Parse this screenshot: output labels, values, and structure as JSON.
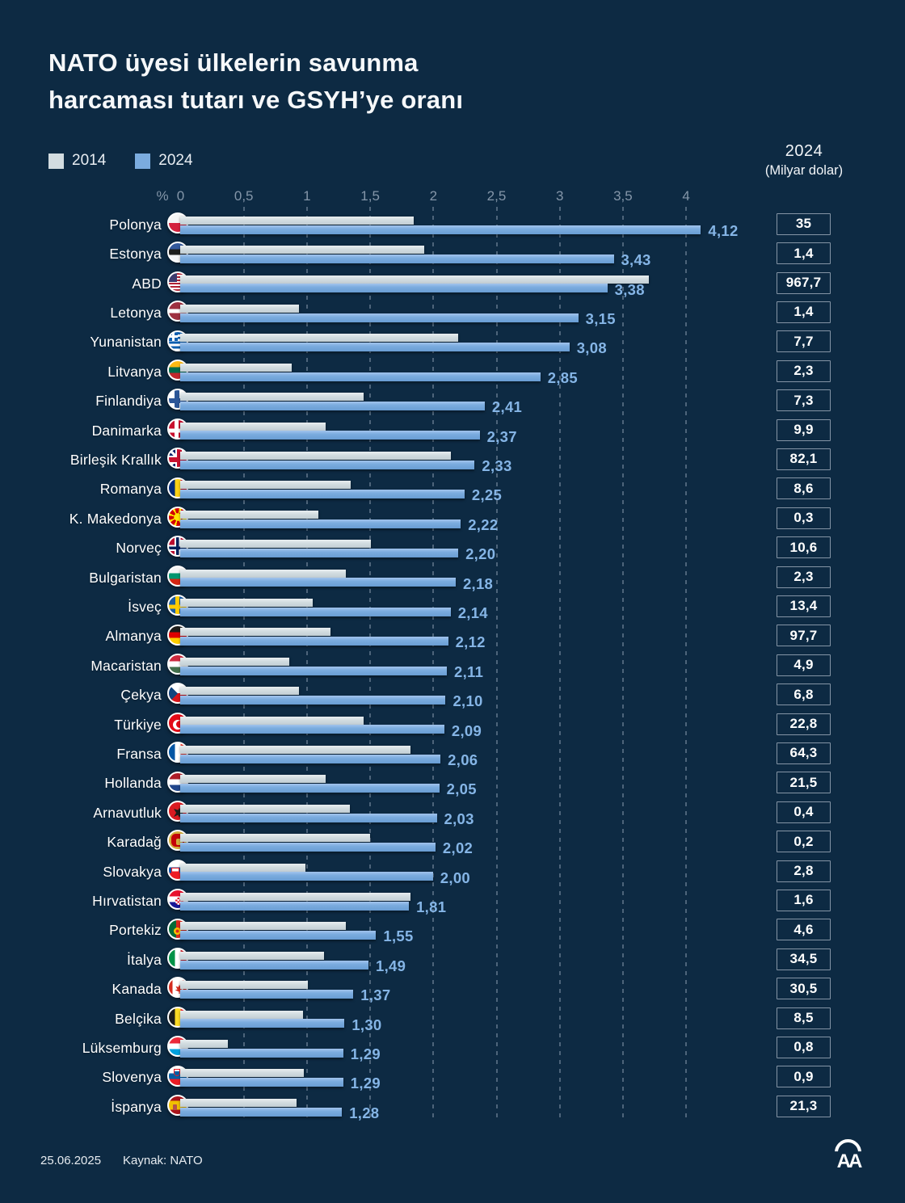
{
  "title": {
    "line1": "NATO üyesi ülkelerin savunma",
    "line2": "harcaması tutarı ve GSYH’ye oranı"
  },
  "legend": {
    "items": [
      {
        "label": "2014",
        "color": "#d2dce0"
      },
      {
        "label": "2024",
        "color": "#7bacdf"
      }
    ]
  },
  "right_header": {
    "line1": "2024",
    "line2": "(Milyar dolar)"
  },
  "axis": {
    "percent_symbol": "%",
    "tick_labels": [
      "0",
      "0,5",
      "1",
      "1,5",
      "2",
      "2,5",
      "3",
      "3,5",
      "4"
    ]
  },
  "footer": {
    "date": "25.06.2025",
    "source": "Kaynak: NATO"
  },
  "logo_text": "AA",
  "colors": {
    "background": "#0d2a43",
    "bar_2014": "#d2dce0",
    "bar_2024": "#7bacdf",
    "value_label": "#85b5e6",
    "axis_label": "#8496a9",
    "box_border": "#8595a6"
  },
  "chart_data": {
    "type": "bar",
    "orientation": "horizontal",
    "title": "NATO üyesi ülkelerin savunma harcaması tutarı ve GSYH’ye oranı",
    "series_names": [
      "2014",
      "2024"
    ],
    "value_unit": "savunma harcamasının GSYH’ye oranı (%)",
    "secondary_value_unit": "2024 savunma harcaması (Milyar dolar)",
    "x_axis": {
      "min": 0,
      "max": 4,
      "tick_step": 0.5
    },
    "grid": "dashed-vertical",
    "legend_position": "top-left",
    "rows": [
      {
        "country": "Polonya",
        "flag": "pl",
        "pct_2014": 1.85,
        "pct_2024": 4.12,
        "pct_2024_label": "4,12",
        "usd_2024_billion": "35"
      },
      {
        "country": "Estonya",
        "flag": "ee",
        "pct_2014": 1.93,
        "pct_2024": 3.43,
        "pct_2024_label": "3,43",
        "usd_2024_billion": "1,4"
      },
      {
        "country": "ABD",
        "flag": "us",
        "pct_2014": 3.71,
        "pct_2024": 3.38,
        "pct_2024_label": "3,38",
        "usd_2024_billion": "967,7"
      },
      {
        "country": "Letonya",
        "flag": "lv",
        "pct_2014": 0.94,
        "pct_2024": 3.15,
        "pct_2024_label": "3,15",
        "usd_2024_billion": "1,4"
      },
      {
        "country": "Yunanistan",
        "flag": "gr",
        "pct_2014": 2.2,
        "pct_2024": 3.08,
        "pct_2024_label": "3,08",
        "usd_2024_billion": "7,7"
      },
      {
        "country": "Litvanya",
        "flag": "lt",
        "pct_2014": 0.88,
        "pct_2024": 2.85,
        "pct_2024_label": "2,85",
        "usd_2024_billion": "2,3"
      },
      {
        "country": "Finlandiya",
        "flag": "fi",
        "pct_2014": 1.45,
        "pct_2024": 2.41,
        "pct_2024_label": "2,41",
        "usd_2024_billion": "7,3"
      },
      {
        "country": "Danimarka",
        "flag": "dk",
        "pct_2014": 1.15,
        "pct_2024": 2.37,
        "pct_2024_label": "2,37",
        "usd_2024_billion": "9,9"
      },
      {
        "country": "Birleşik Krallık",
        "flag": "gb",
        "pct_2014": 2.14,
        "pct_2024": 2.33,
        "pct_2024_label": "2,33",
        "usd_2024_billion": "82,1"
      },
      {
        "country": "Romanya",
        "flag": "ro",
        "pct_2014": 1.35,
        "pct_2024": 2.25,
        "pct_2024_label": "2,25",
        "usd_2024_billion": "8,6"
      },
      {
        "country": "K. Makedonya",
        "flag": "mk",
        "pct_2014": 1.09,
        "pct_2024": 2.22,
        "pct_2024_label": "2,22",
        "usd_2024_billion": "0,3"
      },
      {
        "country": "Norveç",
        "flag": "no",
        "pct_2014": 1.51,
        "pct_2024": 2.2,
        "pct_2024_label": "2,20",
        "usd_2024_billion": "10,6"
      },
      {
        "country": "Bulgaristan",
        "flag": "bg",
        "pct_2014": 1.31,
        "pct_2024": 2.18,
        "pct_2024_label": "2,18",
        "usd_2024_billion": "2,3"
      },
      {
        "country": "İsveç",
        "flag": "se",
        "pct_2014": 1.05,
        "pct_2024": 2.14,
        "pct_2024_label": "2,14",
        "usd_2024_billion": "13,4"
      },
      {
        "country": "Almanya",
        "flag": "de",
        "pct_2014": 1.19,
        "pct_2024": 2.12,
        "pct_2024_label": "2,12",
        "usd_2024_billion": "97,7"
      },
      {
        "country": "Macaristan",
        "flag": "hu",
        "pct_2014": 0.86,
        "pct_2024": 2.11,
        "pct_2024_label": "2,11",
        "usd_2024_billion": "4,9"
      },
      {
        "country": "Çekya",
        "flag": "cz",
        "pct_2014": 0.94,
        "pct_2024": 2.1,
        "pct_2024_label": "2,10",
        "usd_2024_billion": "6,8"
      },
      {
        "country": "Türkiye",
        "flag": "tr",
        "pct_2014": 1.45,
        "pct_2024": 2.09,
        "pct_2024_label": "2,09",
        "usd_2024_billion": "22,8"
      },
      {
        "country": "Fransa",
        "flag": "fr",
        "pct_2014": 1.82,
        "pct_2024": 2.06,
        "pct_2024_label": "2,06",
        "usd_2024_billion": "64,3"
      },
      {
        "country": "Hollanda",
        "flag": "nl",
        "pct_2014": 1.15,
        "pct_2024": 2.05,
        "pct_2024_label": "2,05",
        "usd_2024_billion": "21,5"
      },
      {
        "country": "Arnavutluk",
        "flag": "al",
        "pct_2014": 1.34,
        "pct_2024": 2.03,
        "pct_2024_label": "2,03",
        "usd_2024_billion": "0,4"
      },
      {
        "country": "Karadağ",
        "flag": "me",
        "pct_2014": 1.5,
        "pct_2024": 2.02,
        "pct_2024_label": "2,02",
        "usd_2024_billion": "0,2"
      },
      {
        "country": "Slovakya",
        "flag": "sk",
        "pct_2014": 0.99,
        "pct_2024": 2.0,
        "pct_2024_label": "2,00",
        "usd_2024_billion": "2,8"
      },
      {
        "country": "Hırvatistan",
        "flag": "hr",
        "pct_2014": 1.82,
        "pct_2024": 1.81,
        "pct_2024_label": "1,81",
        "usd_2024_billion": "1,6"
      },
      {
        "country": "Portekiz",
        "flag": "pt",
        "pct_2014": 1.31,
        "pct_2024": 1.55,
        "pct_2024_label": "1,55",
        "usd_2024_billion": "4,6"
      },
      {
        "country": "İtalya",
        "flag": "it",
        "pct_2014": 1.14,
        "pct_2024": 1.49,
        "pct_2024_label": "1,49",
        "usd_2024_billion": "34,5"
      },
      {
        "country": "Kanada",
        "flag": "ca",
        "pct_2014": 1.01,
        "pct_2024": 1.37,
        "pct_2024_label": "1,37",
        "usd_2024_billion": "30,5"
      },
      {
        "country": "Belçika",
        "flag": "be",
        "pct_2014": 0.97,
        "pct_2024": 1.3,
        "pct_2024_label": "1,30",
        "usd_2024_billion": "8,5"
      },
      {
        "country": "Lüksemburg",
        "flag": "lu",
        "pct_2014": 0.38,
        "pct_2024": 1.29,
        "pct_2024_label": "1,29",
        "usd_2024_billion": "0,8"
      },
      {
        "country": "Slovenya",
        "flag": "si",
        "pct_2014": 0.98,
        "pct_2024": 1.29,
        "pct_2024_label": "1,29",
        "usd_2024_billion": "0,9"
      },
      {
        "country": "İspanya",
        "flag": "es",
        "pct_2014": 0.92,
        "pct_2024": 1.28,
        "pct_2024_label": "1,28",
        "usd_2024_billion": "21,3"
      }
    ]
  }
}
